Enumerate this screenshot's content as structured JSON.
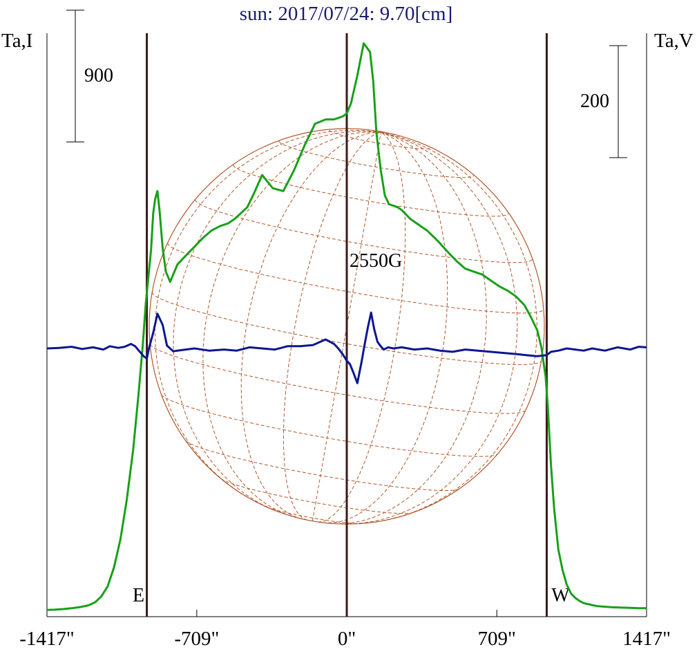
{
  "chart_data": {
    "type": "line",
    "title": "sun: 2017/07/24: 9.70[cm]",
    "left_axis_label": "Ta,I",
    "right_axis_label": "Ta,V",
    "x_unit": "arcsec",
    "xlim": [
      -1417,
      1417
    ],
    "x_tick_labels": [
      "-1417\"",
      "-709\"",
      "0\"",
      "709\"",
      "1417\""
    ],
    "x_tick_values": [
      -1417,
      -709,
      0,
      709,
      1417
    ],
    "limb_markers": [
      {
        "x": -945,
        "label": "E"
      },
      {
        "x": 0,
        "label": ""
      },
      {
        "x": 945,
        "label": "W"
      }
    ],
    "scale_bars": [
      {
        "label": "900",
        "axis": "left",
        "value": 900
      },
      {
        "label": "200",
        "axis": "right",
        "value": 200
      }
    ],
    "annotation": "2550G",
    "colors": {
      "title": "#1a1a6e",
      "stokes_i": "#18a018",
      "stokes_v": "#0c1690",
      "limb_lines": "#3a1a1a",
      "disk_grid": "#b0562a",
      "axes": "#000000"
    },
    "series": [
      {
        "key": "stokes_i",
        "x": [
          -1417,
          -1380,
          -1340,
          -1300,
          -1260,
          -1220,
          -1190,
          -1160,
          -1130,
          -1100,
          -1070,
          -1040,
          -1010,
          -985,
          -965,
          -950,
          -940,
          -925,
          -915,
          -905,
          -895,
          -885,
          -870,
          -855,
          -835,
          -800,
          -760,
          -720,
          -680,
          -640,
          -600,
          -560,
          -530,
          -500,
          -470,
          -440,
          -400,
          -350,
          -300,
          -250,
          -200,
          -150,
          -100,
          -60,
          -20,
          0,
          20,
          50,
          80,
          110,
          125,
          140,
          160,
          180,
          200,
          220,
          240,
          260,
          280,
          300,
          340,
          380,
          430,
          480,
          520,
          560,
          600,
          640,
          680,
          720,
          760,
          800,
          840,
          870,
          900,
          920,
          940,
          950,
          965,
          980,
          1000,
          1020,
          1040,
          1060,
          1080,
          1100,
          1120,
          1150,
          1180,
          1220,
          1260,
          1300,
          1340,
          1380,
          1417
        ],
        "y": [
          8,
          10,
          14,
          20,
          28,
          40,
          60,
          100,
          170,
          300,
          490,
          760,
          1100,
          1470,
          1800,
          2100,
          2250,
          2470,
          2720,
          2820,
          2870,
          2740,
          2480,
          2320,
          2250,
          2370,
          2430,
          2490,
          2550,
          2600,
          2630,
          2650,
          2680,
          2720,
          2760,
          2850,
          2980,
          2890,
          2870,
          3010,
          3180,
          3330,
          3360,
          3360,
          3380,
          3400,
          3470,
          3660,
          3880,
          3820,
          3620,
          3270,
          3020,
          2840,
          2780,
          2770,
          2760,
          2740,
          2710,
          2680,
          2640,
          2600,
          2530,
          2450,
          2390,
          2340,
          2320,
          2300,
          2260,
          2220,
          2190,
          2150,
          2090,
          2010,
          1920,
          1800,
          1600,
          1400,
          1000,
          700,
          420,
          280,
          180,
          120,
          90,
          70,
          55,
          45,
          35,
          30,
          26,
          24,
          22,
          20,
          20
        ]
      },
      {
        "key": "stokes_v",
        "x": [
          -1417,
          -1360,
          -1300,
          -1250,
          -1200,
          -1150,
          -1120,
          -1080,
          -1050,
          -1020,
          -1000,
          -985,
          -960,
          -945,
          -935,
          -915,
          -895,
          -870,
          -850,
          -820,
          -780,
          -720,
          -650,
          -580,
          -520,
          -460,
          -400,
          -340,
          -280,
          -220,
          -160,
          -100,
          -60,
          -40,
          -20,
          0,
          15,
          30,
          50,
          70,
          85,
          100,
          115,
          130,
          145,
          160,
          175,
          195,
          220,
          260,
          320,
          380,
          440,
          500,
          560,
          620,
          680,
          740,
          800,
          850,
          900,
          945,
          965,
          1000,
          1040,
          1080,
          1120,
          1160,
          1220,
          1280,
          1340,
          1380,
          1417
        ],
        "y": [
          0,
          1,
          3,
          -1,
          2,
          -2,
          4,
          1,
          3,
          8,
          4,
          -3,
          -14,
          -18,
          0,
          28,
          62,
          42,
          5,
          -5,
          -3,
          0,
          -4,
          -2,
          -4,
          2,
          0,
          -2,
          4,
          4,
          6,
          16,
          8,
          0,
          -10,
          -22,
          -28,
          -42,
          -62,
          -24,
          8,
          38,
          64,
          34,
          12,
          4,
          -2,
          2,
          0,
          2,
          -2,
          0,
          -4,
          -6,
          -2,
          -4,
          -6,
          -8,
          -10,
          -12,
          -14,
          -12,
          -6,
          -4,
          0,
          -2,
          -4,
          0,
          -4,
          2,
          -2,
          3,
          2
        ]
      }
    ]
  }
}
